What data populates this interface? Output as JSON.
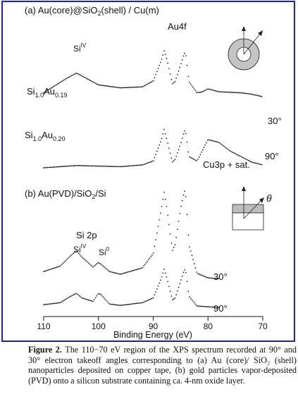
{
  "chart_data": [
    {
      "panel": "a",
      "type": "line",
      "title": "(a) Au(core)@SiO2(shell) / Cu(m)",
      "xlim": [
        110,
        70
      ],
      "series": [
        {
          "name": "30°",
          "x": [
            110,
            106,
            104,
            102,
            100,
            96,
            92,
            90,
            88.5,
            88,
            87.5,
            86.5,
            86,
            85,
            84.3,
            84,
            83.5,
            82,
            81,
            80,
            78,
            76,
            74,
            72,
            70
          ],
          "y": [
            0.12,
            0.4,
            0.52,
            0.4,
            0.28,
            0.22,
            0.24,
            0.36,
            0.78,
            0.97,
            0.8,
            0.3,
            0.35,
            0.68,
            0.93,
            0.86,
            0.35,
            0.12,
            0.14,
            0.2,
            0.14,
            0.13,
            0.12,
            0.09,
            0.04
          ]
        },
        {
          "name": "90°",
          "x": [
            110,
            104,
            100,
            96,
            92,
            90,
            88.5,
            88,
            87.5,
            86.5,
            86,
            85,
            84.3,
            84,
            83.5,
            82,
            80,
            78,
            76,
            74,
            72,
            70
          ],
          "y": [
            0.0,
            0.04,
            0.03,
            0.02,
            0.05,
            0.12,
            0.5,
            0.68,
            0.5,
            0.1,
            0.15,
            0.42,
            0.66,
            0.6,
            0.2,
            0.12,
            0.5,
            0.45,
            0.3,
            0.2,
            0.1,
            0.05
          ]
        }
      ]
    },
    {
      "panel": "b",
      "type": "line",
      "title": "(b) Au(PVD)/SiO2/Si",
      "xlabel": "Binding Energy (eV)",
      "xlim": [
        110,
        70
      ],
      "xticks": [
        110,
        100,
        90,
        80,
        70
      ],
      "series": [
        {
          "name": "30°",
          "x": [
            110,
            107,
            105,
            104,
            103,
            101,
            100,
            99.5,
            98,
            96,
            92,
            90,
            88.5,
            88,
            87.5,
            86.5,
            86,
            85,
            84.3,
            84,
            83.5,
            82,
            80,
            78
          ],
          "y": [
            0.1,
            0.16,
            0.28,
            0.33,
            0.26,
            0.15,
            0.2,
            0.18,
            0.1,
            0.07,
            0.14,
            0.3,
            0.8,
            0.98,
            0.8,
            0.33,
            0.4,
            0.8,
            1.0,
            0.92,
            0.4,
            0.08,
            0.03,
            0.02
          ]
        },
        {
          "name": "90°",
          "x": [
            110,
            107,
            105,
            104,
            103,
            101,
            100,
            99.5,
            98,
            96,
            92,
            90,
            88.5,
            88,
            87.5,
            86.5,
            86,
            85,
            84.3,
            84,
            83.5,
            82,
            80,
            78
          ],
          "y": [
            0.05,
            0.08,
            0.18,
            0.22,
            0.15,
            0.1,
            0.22,
            0.2,
            0.06,
            0.04,
            0.08,
            0.15,
            0.45,
            0.58,
            0.45,
            0.12,
            0.15,
            0.4,
            0.58,
            0.52,
            0.18,
            0.03,
            0.02,
            0.01
          ]
        }
      ]
    }
  ],
  "labels": {
    "title_a_pre": "(a) Au(core)@SiO",
    "title_a_sub": "2",
    "title_a_post": "(shell) / Cu(m)",
    "au4f": "Au4f",
    "si4_base": "Si",
    "si4_sup": "IV",
    "s1_si": "Si",
    "s1_si_sub": "1.0",
    "s1_au": "Au",
    "s1_au_sub": "0.19",
    "s2_si": "Si",
    "s2_si_sub": "1.0",
    "s2_au": "Au",
    "s2_au_sub": "0.20",
    "angle30": "30°",
    "angle90": "90°",
    "cu3p": "Cu3p + sat.",
    "title_b_pre": "(b) Au(PVD)/SiO",
    "title_b_sub": "2",
    "title_b_post": "/Si",
    "si2p": "Si 2p",
    "b_si4_base": "Si",
    "b_si4_sup": "IV",
    "b_si0_base": "Si",
    "b_si0_sup": "0",
    "theta": "θ",
    "xlabel": "Binding Energy (eV)",
    "ticks": [
      "110",
      "100",
      "90",
      "80",
      "70"
    ]
  },
  "caption": {
    "label": "Figure 2.",
    "text": " The 110−70 eV region of the XPS spectrum recorded at 90° and 30° electron takeoff angles corresponding to (a) Au (core)/ SiO₂ (shell) nanoparticles deposited on copper tape, (b) gold particles vapor-deposited (PVD) onto a silicon substrate containing ca. 4-nm oxide layer."
  },
  "colors": {
    "frame": "#1a1fd0",
    "ink": "#111111"
  }
}
